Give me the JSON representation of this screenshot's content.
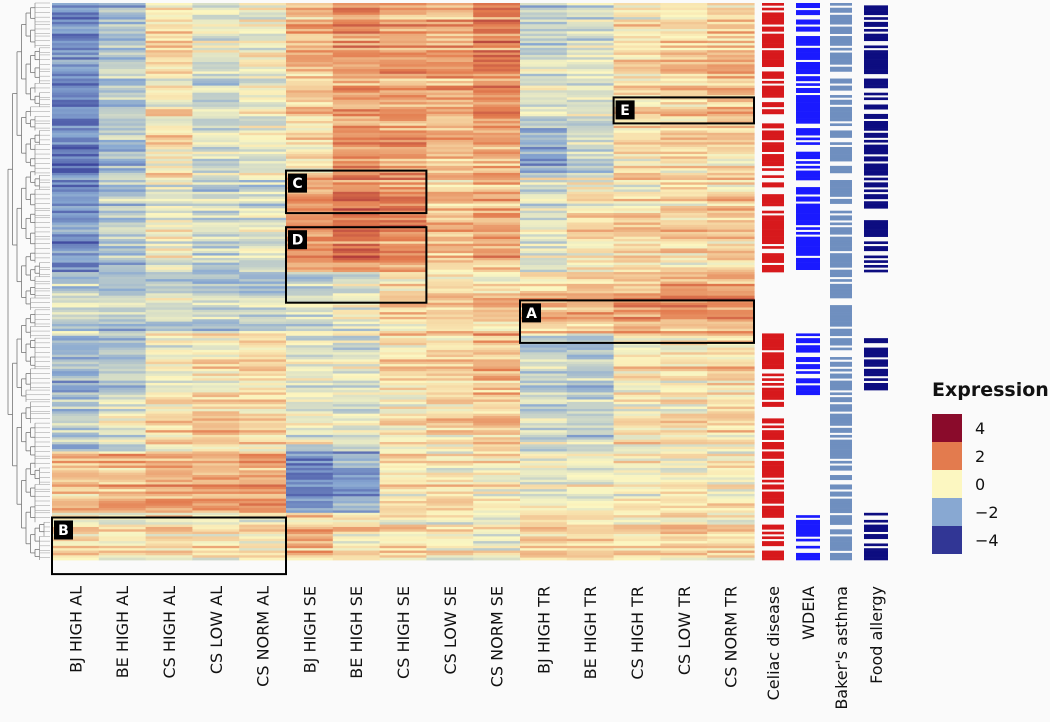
{
  "chart_data": {
    "type": "heatmap",
    "title": "",
    "columns": [
      "BJ HIGH AL",
      "BE HIGH AL",
      "CS HIGH AL",
      "CS LOW AL",
      "CS NORM AL",
      "BJ HIGH SE",
      "BE HIGH SE",
      "CS HIGH SE",
      "CS LOW SE",
      "CS NORM SE",
      "BJ HIGH TR",
      "BE HIGH TR",
      "CS HIGH TR",
      "CS LOW TR",
      "CS NORM TR"
    ],
    "annotation_columns": [
      {
        "name": "Celiac disease",
        "color": "#d7191c"
      },
      {
        "name": "WDEIA",
        "color": "#1a1aff"
      },
      {
        "name": "Baker's asthma",
        "color": "#6f8fbf"
      },
      {
        "name": "Food allergy",
        "color": "#0d0d80"
      }
    ],
    "row_blocks": [
      {
        "rows": 24,
        "values": [
          -2.6,
          -1.6,
          0.3,
          -0.5,
          -0.2,
          0.9,
          1.6,
          1.2,
          1.3,
          1.8,
          -1.2,
          -0.7,
          0.2,
          0.3,
          0.6
        ],
        "annotations": [
          1,
          1,
          1,
          1
        ]
      },
      {
        "rows": 28,
        "values": [
          -2.5,
          -1.3,
          0.1,
          -0.9,
          -0.3,
          0.6,
          1.2,
          1.4,
          1.1,
          1.5,
          -0.8,
          -0.6,
          0.4,
          0.5,
          0.9
        ],
        "annotations": [
          1,
          1,
          1,
          1
        ]
      },
      {
        "rows": 22,
        "values": [
          -2.8,
          -1.5,
          0.2,
          -0.6,
          -0.4,
          0.2,
          1.5,
          1.4,
          1.0,
          1.2,
          -1.8,
          -0.9,
          0.3,
          0.4,
          0.5
        ],
        "annotations": [
          1,
          1,
          1,
          1
        ]
      },
      {
        "rows": 40,
        "values": [
          -2.4,
          -1.4,
          -0.3,
          -1.0,
          -0.7,
          1.4,
          2.0,
          1.6,
          0.8,
          1.1,
          -0.5,
          0.2,
          0.3,
          0.4,
          0.6
        ],
        "annotations": [
          1,
          1,
          1,
          1
        ]
      },
      {
        "rows": 26,
        "values": [
          -1.0,
          -1.2,
          -0.8,
          -1.1,
          -1.0,
          -0.9,
          -0.3,
          0.5,
          0.6,
          0.5,
          0.9,
          1.1,
          1.3,
          1.4,
          1.5
        ],
        "annotations": [
          0,
          0,
          1,
          0
        ]
      },
      {
        "rows": 26,
        "values": [
          -1.6,
          -1.4,
          -0.2,
          0.2,
          0.4,
          -0.4,
          -0.6,
          0.6,
          0.7,
          1.1,
          -1.0,
          -1.2,
          0.2,
          0.3,
          0.5
        ],
        "annotations": [
          1,
          1,
          1,
          1
        ]
      },
      {
        "rows": 24,
        "values": [
          -1.2,
          -0.5,
          0.4,
          0.7,
          0.5,
          -0.3,
          -0.5,
          0.2,
          0.5,
          0.6,
          -0.8,
          -1.0,
          0.1,
          0.2,
          0.3
        ],
        "annotations": [
          1,
          0,
          1,
          0
        ]
      },
      {
        "rows": 26,
        "values": [
          0.9,
          1.0,
          1.1,
          1.2,
          1.3,
          -2.5,
          -2.0,
          0.1,
          0.2,
          0.1,
          -0.3,
          -0.2,
          0.0,
          0.1,
          0.0
        ],
        "annotations": [
          1,
          0,
          1,
          0
        ]
      },
      {
        "rows": 20,
        "values": [
          0.2,
          0.1,
          0.3,
          0.2,
          0.1,
          0.9,
          0.4,
          0.3,
          0.0,
          -0.2,
          0.8,
          0.6,
          0.4,
          0.6,
          0.3
        ],
        "annotations": [
          1,
          1,
          1,
          1
        ]
      }
    ],
    "color_scale": {
      "title": "Expression",
      "ticks": [
        "4",
        "2",
        "0",
        "−2",
        "−4"
      ],
      "stops": [
        {
          "value": -4,
          "color": "#313695"
        },
        {
          "value": -2,
          "color": "#88a8d2"
        },
        {
          "value": 0,
          "color": "#fcf7c1"
        },
        {
          "value": 2,
          "color": "#e37b4e"
        },
        {
          "value": 4,
          "color": "#8a0b2b"
        }
      ]
    },
    "highlight_boxes": [
      {
        "label": "A",
        "rows": [
          126,
          144
        ],
        "columns": [
          10,
          14
        ]
      },
      {
        "label": "B",
        "rows": [
          218,
          242
        ],
        "columns": [
          0,
          4
        ]
      },
      {
        "label": "C",
        "rows": [
          71,
          89
        ],
        "columns": [
          5,
          7
        ]
      },
      {
        "label": "D",
        "rows": [
          95,
          127
        ],
        "columns": [
          5,
          7
        ]
      },
      {
        "label": "E",
        "rows": [
          40,
          51
        ],
        "columns": [
          12,
          14
        ]
      }
    ]
  }
}
